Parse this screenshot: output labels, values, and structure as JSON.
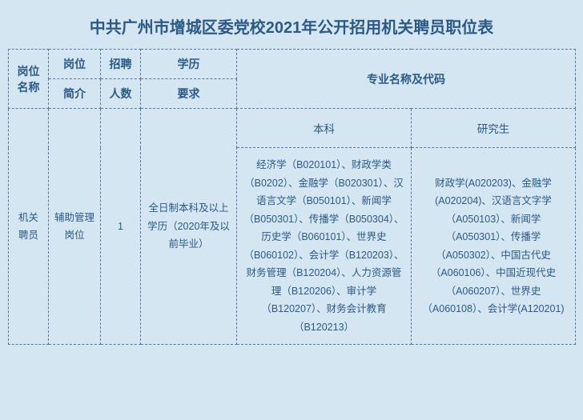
{
  "title": "中共广州市增城区委党校2021年公开招用机关聘员职位表",
  "headers": {
    "col1_row1": "岗位名称",
    "col2_row1": "岗位",
    "col2_row2": "简介",
    "col3_row1": "招聘",
    "col3_row2": "人数",
    "col4_row1": "学历",
    "col4_row2": "要求",
    "col56_row12": "专业名称及代码",
    "col5_sub": "本科",
    "col6_sub": "研究生"
  },
  "row": {
    "position_name": "机关聘员",
    "position_intro": "辅助管理岗位",
    "recruit_count": "1",
    "education_req": "全日制本科及以上学历（2020年及以前毕业）",
    "undergrad_majors": "经济学（B020101）、财政学类（B0202）、金融学（B020301）、汉语言文学（B050101）、新闻学（B050301）、传播学（B050304）、历史学（B060101）、世界史（B060102）、会计学（B120203）、财务管理（B120204）、人力资源管理（B120206）、审计学（B120207）、财务会计教育（B120213）",
    "postgrad_majors": "财政学(A020203)、金融学(A020204)、汉语言文字学（A050103）、新闻学（A050301）、传播学（A050302）、中国古代史（A060106）、中国近现代史（A060207）、世界史（A060108）、会计学(A120201)"
  }
}
